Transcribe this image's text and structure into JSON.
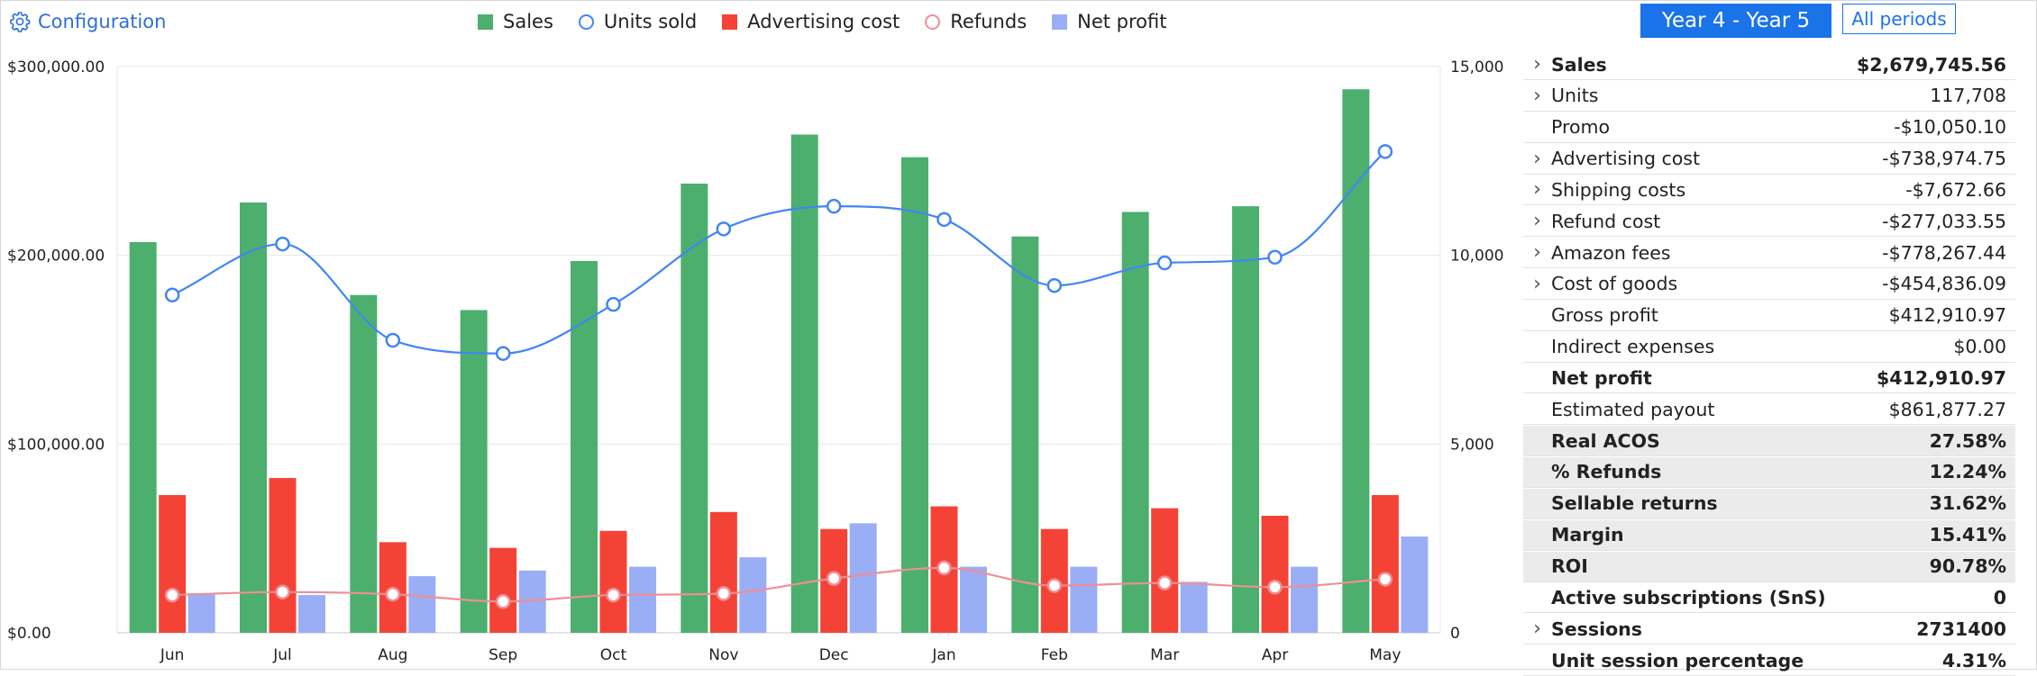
{
  "header": {
    "config_label": "Configuration",
    "config_icon": "gear-icon",
    "period_active": "Year 4 - Year 5",
    "period_all": "All periods"
  },
  "legend": [
    {
      "label": "Sales",
      "color": "#4caf6e",
      "shape": "square"
    },
    {
      "label": "Units sold",
      "color": "#4285f4",
      "shape": "circle"
    },
    {
      "label": "Advertising cost",
      "color": "#f44336",
      "shape": "square"
    },
    {
      "label": "Refunds",
      "color": "#ef8f96",
      "shape": "circle"
    },
    {
      "label": "Net profit",
      "color": "#9aaef5",
      "shape": "square"
    }
  ],
  "chart_data": {
    "type": "bar",
    "categories": [
      "Jun",
      "Jul",
      "Aug",
      "Sep",
      "Oct",
      "Nov",
      "Dec",
      "Jan",
      "Feb",
      "Mar",
      "Apr",
      "May"
    ],
    "series": [
      {
        "name": "Sales",
        "type": "bar",
        "axis": "left",
        "color": "#4caf6e",
        "values": [
          207000,
          228000,
          179000,
          171000,
          197000,
          238000,
          264000,
          252000,
          210000,
          223000,
          226000,
          288000
        ]
      },
      {
        "name": "Advertising cost",
        "type": "bar",
        "axis": "left",
        "color": "#f44336",
        "values": [
          73000,
          82000,
          48000,
          45000,
          54000,
          64000,
          55000,
          67000,
          55000,
          66000,
          62000,
          73000
        ]
      },
      {
        "name": "Net profit",
        "type": "bar",
        "axis": "left",
        "color": "#9aaef5",
        "values": [
          21000,
          20000,
          30000,
          33000,
          35000,
          40000,
          58000,
          35000,
          35000,
          27000,
          35000,
          51000
        ]
      },
      {
        "name": "Units sold",
        "type": "line",
        "axis": "right",
        "color": "#4285f4",
        "values": [
          8950,
          10300,
          7750,
          7400,
          8700,
          10700,
          11300,
          10950,
          9200,
          9800,
          9950,
          12750
        ]
      },
      {
        "name": "Refunds",
        "type": "line",
        "axis": "right",
        "color": "#ef8f96",
        "values": [
          1000,
          1080,
          1020,
          830,
          1000,
          1040,
          1440,
          1720,
          1250,
          1320,
          1210,
          1420
        ]
      }
    ],
    "left_axis": {
      "min": 0,
      "max": 300000,
      "ticks": [
        "$0.00",
        "$100,000.00",
        "$200,000.00",
        "$300,000.00"
      ]
    },
    "right_axis": {
      "min": 0,
      "max": 15000,
      "ticks": [
        "0",
        "5,000",
        "10,000",
        "15,000"
      ]
    },
    "grid": true
  },
  "panel": {
    "rows": [
      {
        "label": "Sales",
        "value": "$2,679,745.56",
        "bold": true,
        "expandable": true,
        "shaded": false
      },
      {
        "label": "Units",
        "value": "117,708",
        "bold": false,
        "expandable": true,
        "shaded": false
      },
      {
        "label": "Promo",
        "value": "-$10,050.10",
        "bold": false,
        "expandable": false,
        "shaded": false
      },
      {
        "label": "Advertising cost",
        "value": "-$738,974.75",
        "bold": false,
        "expandable": true,
        "shaded": false
      },
      {
        "label": "Shipping costs",
        "value": "-$7,672.66",
        "bold": false,
        "expandable": true,
        "shaded": false
      },
      {
        "label": "Refund cost",
        "value": "-$277,033.55",
        "bold": false,
        "expandable": true,
        "shaded": false
      },
      {
        "label": "Amazon fees",
        "value": "-$778,267.44",
        "bold": false,
        "expandable": true,
        "shaded": false
      },
      {
        "label": "Cost of goods",
        "value": "-$454,836.09",
        "bold": false,
        "expandable": true,
        "shaded": false
      },
      {
        "label": "Gross profit",
        "value": "$412,910.97",
        "bold": false,
        "expandable": false,
        "shaded": false
      },
      {
        "label": "Indirect expenses",
        "value": "$0.00",
        "bold": false,
        "expandable": false,
        "shaded": false
      },
      {
        "label": "Net profit",
        "value": "$412,910.97",
        "bold": true,
        "expandable": false,
        "shaded": false
      },
      {
        "label": "Estimated payout",
        "value": "$861,877.27",
        "bold": false,
        "expandable": false,
        "shaded": false
      },
      {
        "label": "Real ACOS",
        "value": "27.58%",
        "bold": true,
        "expandable": false,
        "shaded": true
      },
      {
        "label": "% Refunds",
        "value": "12.24%",
        "bold": true,
        "expandable": false,
        "shaded": true
      },
      {
        "label": "Sellable returns",
        "value": "31.62%",
        "bold": true,
        "expandable": false,
        "shaded": true
      },
      {
        "label": "Margin",
        "value": "15.41%",
        "bold": true,
        "expandable": false,
        "shaded": true
      },
      {
        "label": "ROI",
        "value": "90.78%",
        "bold": true,
        "expandable": false,
        "shaded": true
      },
      {
        "label": "Active subscriptions (SnS)",
        "value": "0",
        "bold": true,
        "expandable": false,
        "shaded": false
      },
      {
        "label": "Sessions",
        "value": "2731400",
        "bold": true,
        "expandable": true,
        "shaded": false
      },
      {
        "label": "Unit session percentage",
        "value": "4.31%",
        "bold": true,
        "expandable": false,
        "shaded": false
      }
    ]
  }
}
